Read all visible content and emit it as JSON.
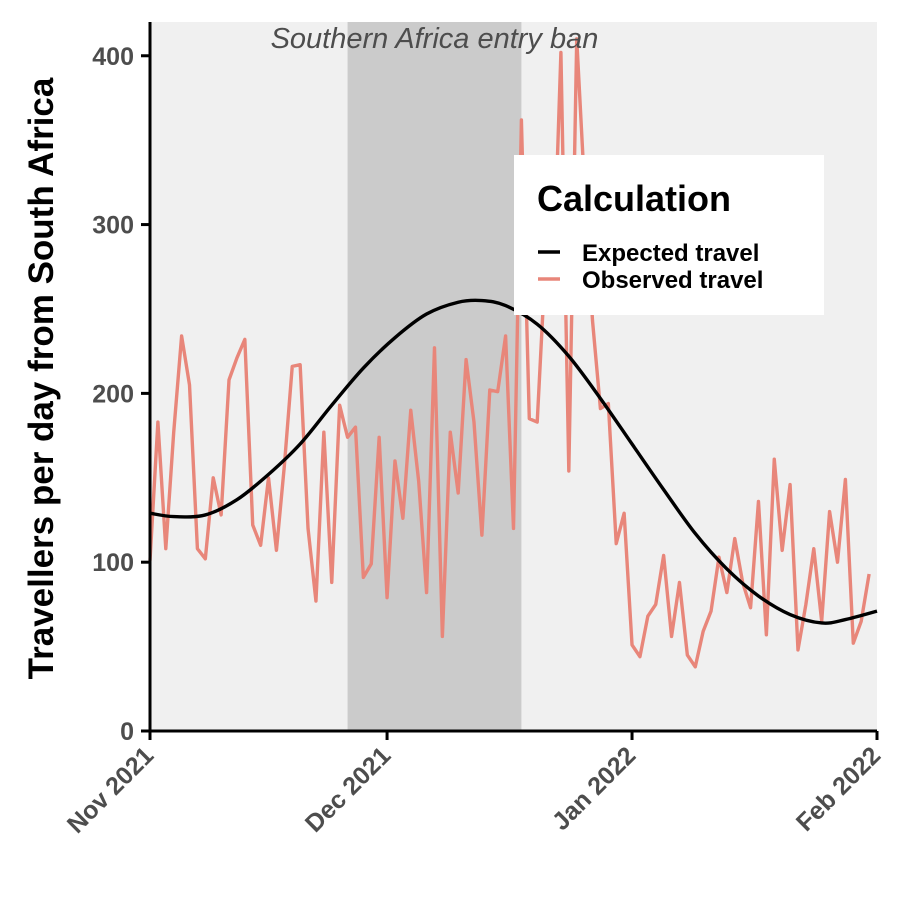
{
  "chart_data": {
    "type": "line",
    "title": "",
    "xlabel": "",
    "ylabel": "Travellers per day from South Africa",
    "xlim": [
      "2021-11-01",
      "2022-02-01"
    ],
    "ylim": [
      0,
      420
    ],
    "x_ticks": [
      {
        "date": "2021-11-01",
        "label": "Nov 2021"
      },
      {
        "date": "2021-12-01",
        "label": "Dec 2021"
      },
      {
        "date": "2022-01-01",
        "label": "Jan 2022"
      },
      {
        "date": "2022-02-01",
        "label": "Feb 2022"
      }
    ],
    "y_ticks": [
      0,
      100,
      200,
      300,
      400
    ],
    "grid": false,
    "panel_background": "#f0f0f0",
    "shaded_region": {
      "label": "Southern Africa entry ban",
      "start": "2021-11-26",
      "end": "2021-12-18",
      "color": "#cbcbcb"
    },
    "legend": {
      "title": "Calculation",
      "position": "top-right",
      "entries": [
        {
          "label": "Expected travel",
          "color": "#000000"
        },
        {
          "label": "Observed travel",
          "color": "#e8867a"
        }
      ]
    },
    "series": [
      {
        "name": "Expected travel",
        "color": "#000000",
        "points": [
          [
            "2021-11-01",
            129
          ],
          [
            "2021-11-04",
            127
          ],
          [
            "2021-11-08",
            128
          ],
          [
            "2021-11-12",
            137
          ],
          [
            "2021-11-16",
            152
          ],
          [
            "2021-11-20",
            170
          ],
          [
            "2021-11-24",
            193
          ],
          [
            "2021-11-28",
            215
          ],
          [
            "2021-12-02",
            233
          ],
          [
            "2021-12-06",
            247
          ],
          [
            "2021-12-10",
            254
          ],
          [
            "2021-12-13",
            255
          ],
          [
            "2021-12-16",
            252
          ],
          [
            "2021-12-20",
            241
          ],
          [
            "2021-12-24",
            222
          ],
          [
            "2021-12-28",
            197
          ],
          [
            "2022-01-01",
            170
          ],
          [
            "2022-01-05",
            143
          ],
          [
            "2022-01-09",
            117
          ],
          [
            "2022-01-13",
            96
          ],
          [
            "2022-01-17",
            80
          ],
          [
            "2022-01-21",
            69
          ],
          [
            "2022-01-25",
            64
          ],
          [
            "2022-01-28",
            66
          ],
          [
            "2022-02-01",
            71
          ]
        ]
      },
      {
        "name": "Observed travel",
        "color": "#e8867a",
        "points": [
          [
            "2021-11-01",
            101
          ],
          [
            "2021-11-02",
            183
          ],
          [
            "2021-11-03",
            108
          ],
          [
            "2021-11-04",
            177
          ],
          [
            "2021-11-05",
            234
          ],
          [
            "2021-11-06",
            205
          ],
          [
            "2021-11-07",
            108
          ],
          [
            "2021-11-08",
            102
          ],
          [
            "2021-11-09",
            150
          ],
          [
            "2021-11-10",
            128
          ],
          [
            "2021-11-11",
            208
          ],
          [
            "2021-11-12",
            221
          ],
          [
            "2021-11-13",
            232
          ],
          [
            "2021-11-14",
            122
          ],
          [
            "2021-11-15",
            110
          ],
          [
            "2021-11-16",
            150
          ],
          [
            "2021-11-17",
            107
          ],
          [
            "2021-11-18",
            157
          ],
          [
            "2021-11-19",
            216
          ],
          [
            "2021-11-20",
            217
          ],
          [
            "2021-11-21",
            120
          ],
          [
            "2021-11-22",
            77
          ],
          [
            "2021-11-23",
            177
          ],
          [
            "2021-11-24",
            88
          ],
          [
            "2021-11-25",
            193
          ],
          [
            "2021-11-26",
            174
          ],
          [
            "2021-11-27",
            180
          ],
          [
            "2021-11-28",
            91
          ],
          [
            "2021-11-29",
            99
          ],
          [
            "2021-11-30",
            174
          ],
          [
            "2021-12-01",
            79
          ],
          [
            "2021-12-02",
            160
          ],
          [
            "2021-12-03",
            126
          ],
          [
            "2021-12-04",
            190
          ],
          [
            "2021-12-05",
            148
          ],
          [
            "2021-12-06",
            82
          ],
          [
            "2021-12-07",
            227
          ],
          [
            "2021-12-08",
            56
          ],
          [
            "2021-12-09",
            177
          ],
          [
            "2021-12-10",
            141
          ],
          [
            "2021-12-11",
            220
          ],
          [
            "2021-12-12",
            183
          ],
          [
            "2021-12-13",
            116
          ],
          [
            "2021-12-14",
            202
          ],
          [
            "2021-12-15",
            201
          ],
          [
            "2021-12-16",
            234
          ],
          [
            "2021-12-17",
            120
          ],
          [
            "2021-12-18",
            362
          ],
          [
            "2021-12-19",
            185
          ],
          [
            "2021-12-20",
            183
          ],
          [
            "2021-12-21",
            274
          ],
          [
            "2021-12-22",
            260
          ],
          [
            "2021-12-23",
            402
          ],
          [
            "2021-12-24",
            154
          ],
          [
            "2021-12-25",
            410
          ],
          [
            "2021-12-26",
            321
          ],
          [
            "2021-12-27",
            243
          ],
          [
            "2021-12-28",
            191
          ],
          [
            "2021-12-29",
            194
          ],
          [
            "2021-12-30",
            111
          ],
          [
            "2021-12-31",
            129
          ],
          [
            "2022-01-01",
            51
          ],
          [
            "2022-01-02",
            44
          ],
          [
            "2022-01-03",
            68
          ],
          [
            "2022-01-04",
            75
          ],
          [
            "2022-01-05",
            104
          ],
          [
            "2022-01-06",
            56
          ],
          [
            "2022-01-07",
            88
          ],
          [
            "2022-01-08",
            45
          ],
          [
            "2022-01-09",
            38
          ],
          [
            "2022-01-10",
            59
          ],
          [
            "2022-01-11",
            71
          ],
          [
            "2022-01-12",
            103
          ],
          [
            "2022-01-13",
            82
          ],
          [
            "2022-01-14",
            114
          ],
          [
            "2022-01-15",
            88
          ],
          [
            "2022-01-16",
            73
          ],
          [
            "2022-01-17",
            136
          ],
          [
            "2022-01-18",
            57
          ],
          [
            "2022-01-19",
            161
          ],
          [
            "2022-01-20",
            107
          ],
          [
            "2022-01-21",
            146
          ],
          [
            "2022-01-22",
            48
          ],
          [
            "2022-01-23",
            75
          ],
          [
            "2022-01-24",
            108
          ],
          [
            "2022-01-25",
            65
          ],
          [
            "2022-01-26",
            130
          ],
          [
            "2022-01-27",
            100
          ],
          [
            "2022-01-28",
            149
          ],
          [
            "2022-01-29",
            52
          ],
          [
            "2022-01-30",
            65
          ],
          [
            "2022-01-31",
            93
          ]
        ]
      }
    ]
  }
}
